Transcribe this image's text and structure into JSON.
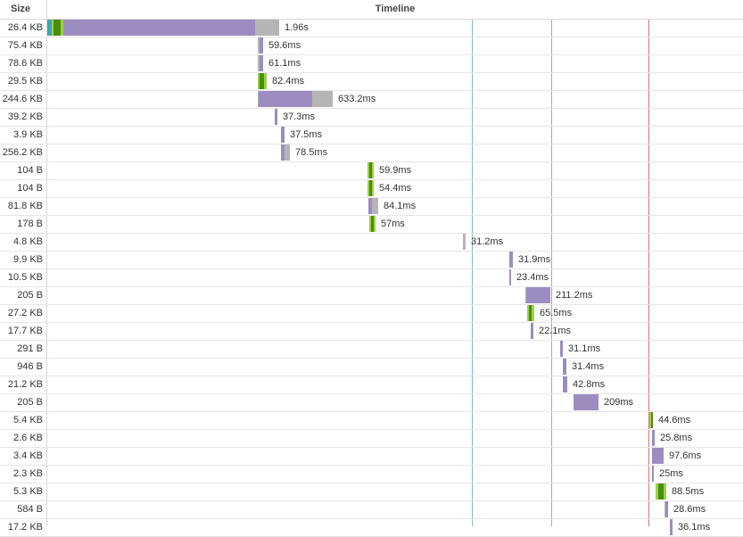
{
  "header": {
    "size": "Size",
    "timeline": "Timeline"
  },
  "colors": {
    "blocking": "#3aa6b9",
    "dns": "#7ec33a",
    "connect": "#4c8c0e",
    "ssl": "#9ad148",
    "waiting": "#9c8dc1",
    "receiving": "#b5b5b5",
    "dom_content_loaded": "#7fb8cc",
    "load": "#d6736f"
  },
  "rows": [
    {
      "size": "26.4 KB",
      "duration": "1.96s",
      "segments": [
        [
          "blocking",
          0,
          5
        ],
        [
          "ssl",
          5,
          7
        ],
        [
          "connect",
          7,
          15
        ],
        [
          "ssl",
          15,
          18
        ],
        [
          "waiting",
          18,
          233
        ],
        [
          "receiving",
          233,
          260
        ]
      ]
    },
    {
      "size": "75.4 KB",
      "duration": "59.6ms",
      "segments": [
        [
          "receiving",
          236,
          238
        ],
        [
          "waiting",
          238,
          242
        ]
      ]
    },
    {
      "size": "78.6 KB",
      "duration": "61.1ms",
      "segments": [
        [
          "receiving",
          236,
          238
        ],
        [
          "waiting",
          238,
          242
        ]
      ]
    },
    {
      "size": "29.5 KB",
      "duration": "82.4ms",
      "segments": [
        [
          "ssl",
          236,
          238
        ],
        [
          "connect",
          238,
          243
        ],
        [
          "ssl",
          243,
          246
        ]
      ]
    },
    {
      "size": "244.6 KB",
      "duration": "633.2ms",
      "segments": [
        [
          "receiving",
          236,
          237
        ],
        [
          "waiting",
          237,
          297
        ],
        [
          "receiving",
          297,
          320
        ]
      ]
    },
    {
      "size": "39.2 KB",
      "duration": "37.3ms",
      "segments": [
        [
          "waiting",
          255,
          258
        ]
      ]
    },
    {
      "size": "3.9 KB",
      "duration": "37.5ms",
      "segments": [
        [
          "waiting",
          262,
          266
        ]
      ]
    },
    {
      "size": "256.2 KB",
      "duration": "78.5ms",
      "segments": [
        [
          "waiting",
          262,
          266
        ],
        [
          "receiving",
          266,
          272
        ]
      ]
    },
    {
      "size": "104 B",
      "duration": "59.9ms",
      "segments": [
        [
          "ssl",
          359,
          361
        ],
        [
          "connect",
          361,
          364
        ],
        [
          "ssl",
          364,
          366
        ]
      ]
    },
    {
      "size": "104 B",
      "duration": "54.4ms",
      "segments": [
        [
          "ssl",
          359,
          361
        ],
        [
          "connect",
          361,
          364
        ],
        [
          "ssl",
          364,
          366
        ]
      ]
    },
    {
      "size": "81.8 KB",
      "duration": "84.1ms",
      "segments": [
        [
          "waiting",
          360,
          364
        ],
        [
          "receiving",
          364,
          371
        ]
      ]
    },
    {
      "size": "178 B",
      "duration": "57ms",
      "segments": [
        [
          "ssl",
          361,
          363
        ],
        [
          "connect",
          363,
          366
        ],
        [
          "ssl",
          366,
          368
        ]
      ]
    },
    {
      "size": "4.8 KB",
      "duration": "31.2ms",
      "segments": [
        [
          "receiving",
          466,
          469
        ]
      ]
    },
    {
      "size": "9.9 KB",
      "duration": "31.9ms",
      "segments": [
        [
          "waiting",
          518,
          522
        ]
      ]
    },
    {
      "size": "10.5 KB",
      "duration": "23.4ms",
      "segments": [
        [
          "waiting",
          518,
          520
        ]
      ]
    },
    {
      "size": "205 B",
      "duration": "211.2ms",
      "segments": [
        [
          "receiving",
          536,
          537
        ],
        [
          "waiting",
          537,
          564
        ]
      ]
    },
    {
      "size": "27.2 KB",
      "duration": "65.5ms",
      "segments": [
        [
          "ssl",
          538,
          540
        ],
        [
          "connect",
          540,
          543
        ],
        [
          "ssl",
          543,
          546
        ]
      ]
    },
    {
      "size": "17.7 KB",
      "duration": "22.1ms",
      "segments": [
        [
          "waiting",
          542,
          545
        ]
      ]
    },
    {
      "size": "291 B",
      "duration": "31.1ms",
      "segments": [
        [
          "waiting",
          575,
          578
        ]
      ]
    },
    {
      "size": "946 B",
      "duration": "31.4ms",
      "segments": [
        [
          "waiting",
          578,
          582
        ]
      ]
    },
    {
      "size": "21.2 KB",
      "duration": "42.8ms",
      "segments": [
        [
          "waiting",
          578,
          583
        ]
      ]
    },
    {
      "size": "205 B",
      "duration": "209ms",
      "segments": [
        [
          "waiting",
          590,
          618
        ]
      ]
    },
    {
      "size": "5.4 KB",
      "duration": "44.6ms",
      "segments": [
        [
          "ssl",
          675,
          677
        ],
        [
          "connect",
          677,
          679
        ]
      ]
    },
    {
      "size": "2.6 KB",
      "duration": "25.8ms",
      "segments": [
        [
          "waiting",
          678,
          681
        ]
      ]
    },
    {
      "size": "3.4 KB",
      "duration": "97.6ms",
      "segments": [
        [
          "waiting",
          678,
          691
        ]
      ]
    },
    {
      "size": "2.3 KB",
      "duration": "25ms",
      "segments": [
        [
          "waiting",
          678,
          680
        ]
      ]
    },
    {
      "size": "5.3 KB",
      "duration": "88.5ms",
      "segments": [
        [
          "ssl",
          682,
          685
        ],
        [
          "connect",
          685,
          691
        ],
        [
          "ssl",
          691,
          694
        ]
      ]
    },
    {
      "size": "584 B",
      "duration": "28.6ms",
      "segments": [
        [
          "receiving",
          692,
          693
        ],
        [
          "waiting",
          693,
          696
        ]
      ]
    },
    {
      "size": "17.2 KB",
      "duration": "36.1ms",
      "segments": [
        [
          "waiting",
          698,
          701
        ]
      ]
    }
  ]
}
